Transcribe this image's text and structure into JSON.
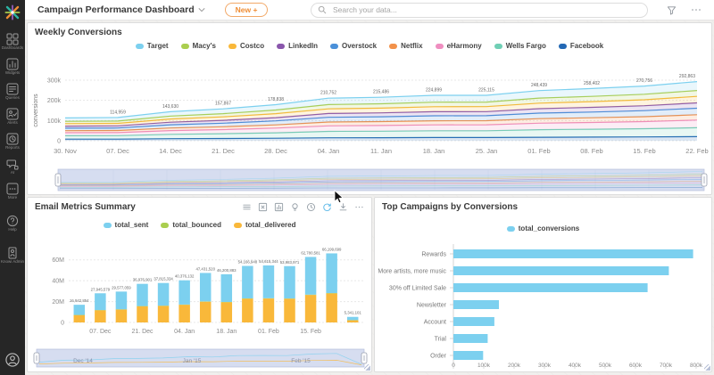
{
  "header": {
    "title": "Campaign Performance Dashboard",
    "new_button_label": "New +",
    "search_placeholder": "Search your data...",
    "icons": [
      "filter-funnel",
      "more-ellipsis"
    ]
  },
  "sidebar": {
    "logo": "knowi-logo",
    "items": [
      {
        "id": "dashboards",
        "label": "Dashboards",
        "icon": "dashboards",
        "gap": false
      },
      {
        "id": "widgets",
        "label": "Widgets",
        "icon": "widgets",
        "gap": false
      },
      {
        "id": "queries",
        "label": "Queries",
        "icon": "queries",
        "gap": false
      },
      {
        "id": "alerts",
        "label": "Alerts",
        "icon": "alerts",
        "gap": false
      },
      {
        "id": "reports",
        "label": "Reports",
        "icon": "reports",
        "gap": false
      },
      {
        "id": "ai",
        "label": "AI",
        "icon": "ai",
        "gap": false
      },
      {
        "id": "more",
        "label": "More",
        "icon": "more",
        "gap": false
      },
      {
        "id": "help",
        "label": "Help",
        "icon": "help",
        "gap": true
      },
      {
        "id": "knowi-admin",
        "label": "Knowi Admin",
        "icon": "admin",
        "gap": true
      }
    ]
  },
  "panels": {
    "weekly": {
      "title": "Weekly Conversions"
    },
    "email": {
      "title": "Email Metrics Summary",
      "toolbar": [
        {
          "name": "hamburger",
          "active": false
        },
        {
          "name": "export",
          "active": false
        },
        {
          "name": "chart",
          "active": false
        },
        {
          "name": "bulb",
          "active": false
        },
        {
          "name": "history",
          "active": false
        },
        {
          "name": "refresh",
          "active": true
        },
        {
          "name": "download",
          "active": false
        },
        {
          "name": "more",
          "active": false
        }
      ]
    },
    "campaigns": {
      "title": "Top Campaigns by Conversions"
    }
  },
  "chart_data": [
    {
      "type": "area",
      "stacked": true,
      "title": "Weekly Conversions",
      "ylabel": "conversions",
      "categories": [
        "30. Nov",
        "07. Dec",
        "14. Dec",
        "21. Dec",
        "28. Dec",
        "04. Jan",
        "11. Jan",
        "18. Jan",
        "25. Jan",
        "01. Feb",
        "08. Feb",
        "15. Feb",
        "22. Feb"
      ],
      "totals": [
        113000,
        114959,
        143630,
        157867,
        178838,
        210752,
        215486,
        224899,
        225115,
        248439,
        258402,
        270756,
        292863
      ],
      "total_labels": [
        "",
        "114,959",
        "143,630",
        "157,867",
        "178,838",
        "210,752",
        "215,486",
        "224,899",
        "225,115",
        "248,439",
        "258,402",
        "270,756",
        "292,863"
      ],
      "ymax": 300000,
      "yticks": [
        {
          "v": 0,
          "label": "0"
        },
        {
          "v": 100000,
          "label": "100k"
        },
        {
          "v": 200000,
          "label": "200k"
        },
        {
          "v": 300000,
          "label": "300k"
        }
      ],
      "series": [
        {
          "name": "Target",
          "color": "#7cd0ef",
          "share": 0.15
        },
        {
          "name": "Macy's",
          "color": "#aace4f",
          "share": 0.1
        },
        {
          "name": "Costco",
          "color": "#f9b83a",
          "share": 0.11
        },
        {
          "name": "LinkedIn",
          "color": "#8a56ac",
          "share": 0.09
        },
        {
          "name": "Overstock",
          "color": "#4a90d9",
          "share": 0.11
        },
        {
          "name": "Netflix",
          "color": "#f2914a",
          "share": 0.09
        },
        {
          "name": "eHarmony",
          "color": "#ef8ec0",
          "share": 0.13
        },
        {
          "name": "Wells Fargo",
          "color": "#70cfb5",
          "share": 0.15
        },
        {
          "name": "Facebook",
          "color": "#2368b4",
          "share": 0.07
        }
      ],
      "legend_position": "top",
      "grid": true
    },
    {
      "type": "bar",
      "stacked": true,
      "title": "Email Metrics Summary",
      "totals": [
        16942854,
        27945579,
        29577059,
        36976901,
        37815334,
        40376132,
        47431520,
        46200883,
        54166948,
        54615344,
        53983971,
        62780581,
        66199699,
        5341101
      ],
      "total_labels": [
        "16,942,854",
        "27,945,579",
        "29,577,059",
        "36,976,901",
        "37,815,334",
        "40,376,132",
        "47,431,520",
        "46,200,883",
        "54,166,948",
        "54,615,344",
        "53,983,971",
        "62,780,581",
        "66,199,699",
        "5,341,101"
      ],
      "tick_labels": [
        "",
        "07. Dec",
        "",
        "21. Dec",
        "",
        "04. Jan",
        "",
        "18. Jan",
        "",
        "01. Feb",
        "",
        "15. Feb",
        "",
        ""
      ],
      "ymax": 70000000,
      "yticks": [
        {
          "v": 0,
          "label": "0"
        },
        {
          "v": 20000000,
          "label": "20M"
        },
        {
          "v": 40000000,
          "label": "40M"
        },
        {
          "v": 60000000,
          "label": "60M"
        }
      ],
      "series": [
        {
          "name": "total_sent",
          "color": "#7cd0ef",
          "share": 0.575
        },
        {
          "name": "total_bounced",
          "color": "#aace4f",
          "share": 0.005
        },
        {
          "name": "total_delivered",
          "color": "#f9b83a",
          "share": 0.42
        }
      ],
      "navigator_labels": [
        "Dec '14",
        "Jan '15",
        "Feb '15"
      ],
      "legend_position": "top",
      "grid": true
    },
    {
      "type": "bar-horizontal",
      "title": "Top Campaigns by Conversions",
      "legend": "total_conversions",
      "color": "#7cd0ef",
      "categories": [
        "Rewards",
        "More artists, more music",
        "30% off Limited Sale",
        "Newsletter",
        "Account",
        "Trial",
        "Order"
      ],
      "values": [
        790000,
        710000,
        640000,
        150000,
        135000,
        113000,
        98000
      ],
      "xmax": 800000,
      "xticks": [
        {
          "v": 0,
          "label": "0"
        },
        {
          "v": 100000,
          "label": "100k"
        },
        {
          "v": 200000,
          "label": "200k"
        },
        {
          "v": 300000,
          "label": "300k"
        },
        {
          "v": 400000,
          "label": "400k"
        },
        {
          "v": 500000,
          "label": "500k"
        },
        {
          "v": 600000,
          "label": "600k"
        },
        {
          "v": 700000,
          "label": "700k"
        },
        {
          "v": 800000,
          "label": "800k"
        }
      ],
      "legend_position": "top",
      "grid": false
    }
  ]
}
